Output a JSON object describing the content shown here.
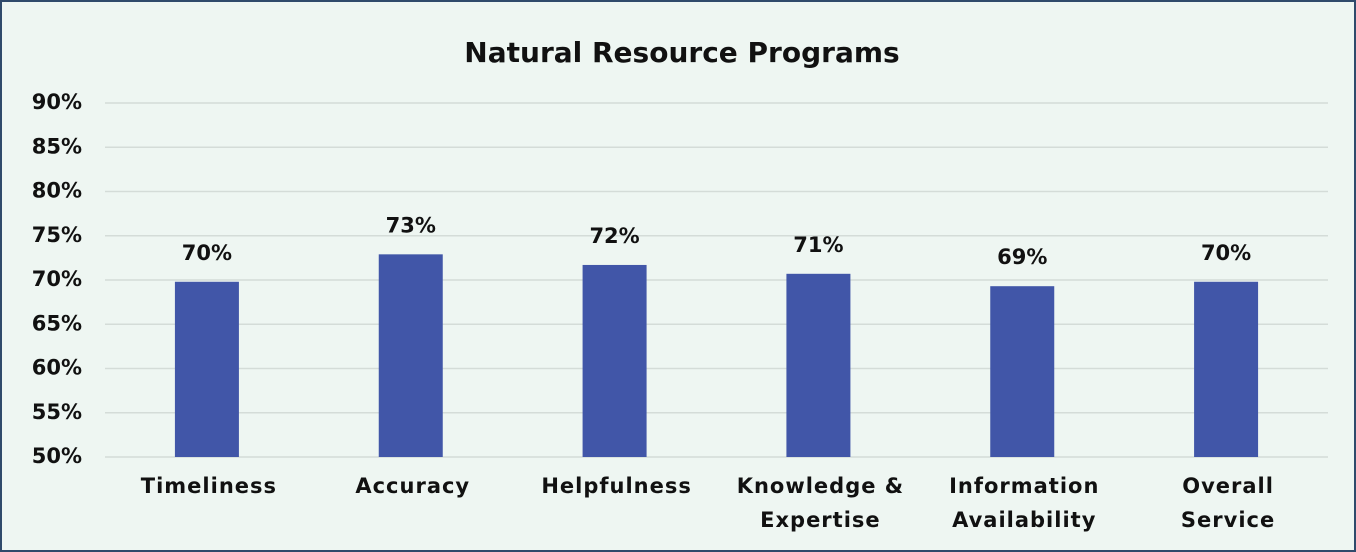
{
  "chart_data": {
    "type": "bar",
    "title": "Natural Resource Programs",
    "categories": [
      "Timeliness",
      "Accuracy",
      "Helpfulness",
      "Knowledge &\nExpertise",
      "Information\nAvailability",
      "Overall\nService"
    ],
    "values": [
      69.8,
      72.9,
      71.7,
      70.7,
      69.3,
      69.8
    ],
    "value_labels": [
      "70%",
      "73%",
      "72%",
      "71%",
      "69%",
      "70%"
    ],
    "color": "#4156a8",
    "ylim": [
      50,
      90
    ],
    "yticks": [
      {
        "value": 50,
        "label": "50%"
      },
      {
        "value": 55,
        "label": "55%"
      },
      {
        "value": 60,
        "label": "60%"
      },
      {
        "value": 65,
        "label": "65%"
      },
      {
        "value": 70,
        "label": "70%"
      },
      {
        "value": 75,
        "label": "75%"
      },
      {
        "value": 80,
        "label": "80%"
      },
      {
        "value": 85,
        "label": "85%"
      },
      {
        "value": 90,
        "label": "90%"
      }
    ],
    "grid": true
  }
}
